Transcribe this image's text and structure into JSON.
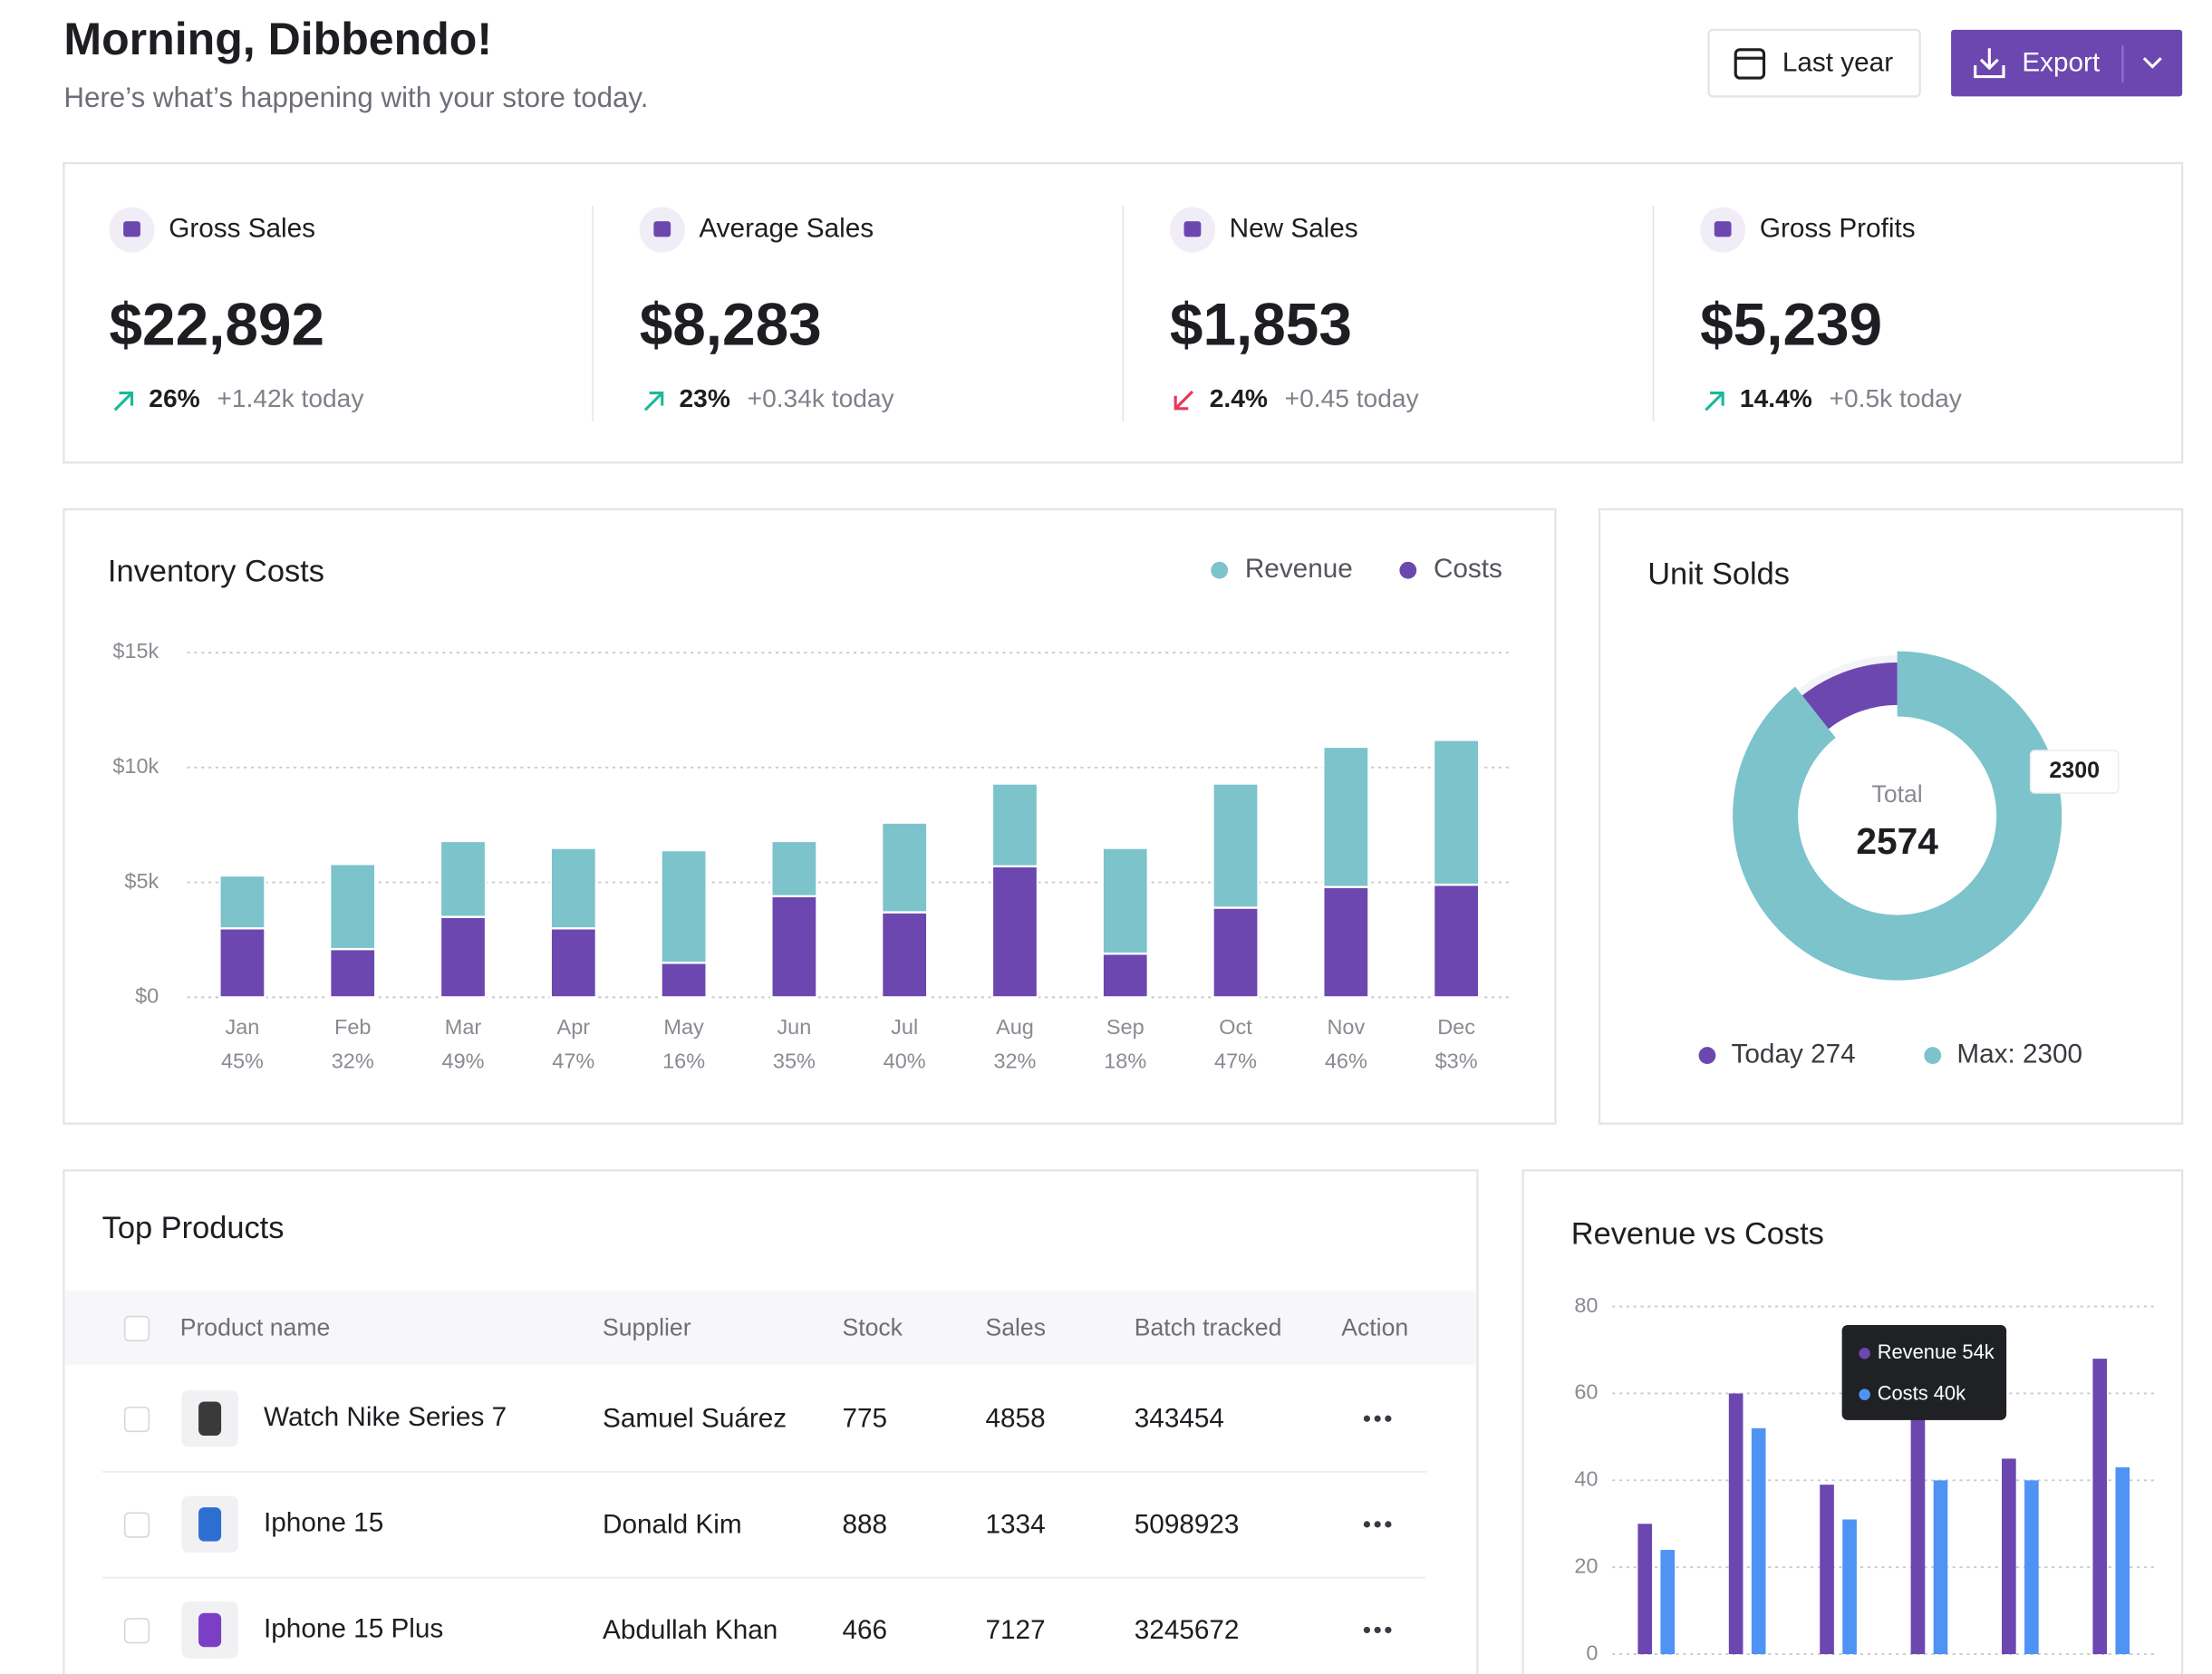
{
  "header": {
    "title": "Morning, Dibbendo!",
    "subtitle": "Here’s what’s happening with your store today."
  },
  "buttons": {
    "period": "Last year",
    "export": "Export"
  },
  "stats": [
    {
      "label": "Gross Sales",
      "value": "$22,892",
      "change": "26%",
      "direction": "up",
      "today": "+1.42k today"
    },
    {
      "label": "Average Sales",
      "value": "$8,283",
      "change": "23%",
      "direction": "up",
      "today": "+0.34k today"
    },
    {
      "label": "New Sales",
      "value": "$1,853",
      "change": "2.4%",
      "direction": "down",
      "today": "+0.45 today"
    },
    {
      "label": "Gross Profits",
      "value": "$5,239",
      "change": "14.4%",
      "direction": "up",
      "today": "+0.5k today"
    }
  ],
  "table": {
    "title": "Top Products",
    "columns": [
      "Product name",
      "Supplier",
      "Stock",
      "Sales",
      "Batch tracked",
      "Action"
    ],
    "rows": [
      [
        "Watch Nike Series 7",
        "Samuel Suárez",
        "775",
        "4858",
        "343454"
      ],
      [
        "Iphone 15",
        "Donald Kim",
        "888",
        "1334",
        "5098923"
      ],
      [
        "Iphone 15 Plus",
        "Abdullah Khan",
        "466",
        "7127",
        "3245672"
      ]
    ]
  },
  "chart_data": [
    {
      "type": "bar",
      "stacked": true,
      "title": "Inventory Costs",
      "categories": [
        "Jan",
        "Feb",
        "Mar",
        "Apr",
        "May",
        "Jun",
        "Jul",
        "Aug",
        "Sep",
        "Oct",
        "Nov",
        "Dec"
      ],
      "category_notes": [
        "45%",
        "32%",
        "49%",
        "47%",
        "16%",
        "35%",
        "40%",
        "32%",
        "18%",
        "47%",
        "46%",
        "$3%"
      ],
      "series": [
        {
          "name": "Revenue",
          "color": "#7cc3cc",
          "values": [
            2300,
            3700,
            3300,
            3500,
            4900,
            2400,
            3900,
            3600,
            4600,
            5400,
            6100,
            6300
          ]
        },
        {
          "name": "Costs",
          "color": "#6c47b0",
          "values": [
            3000,
            2100,
            3500,
            3000,
            1500,
            4400,
            3700,
            5700,
            1900,
            3900,
            4800,
            4900
          ]
        }
      ],
      "ylim": [
        0,
        15000
      ],
      "yticks": [
        {
          "value": 0,
          "label": "$0"
        },
        {
          "value": 5000,
          "label": "$5k"
        },
        {
          "value": 10000,
          "label": "$10k"
        },
        {
          "value": 15000,
          "label": "$15k"
        }
      ],
      "grid": true,
      "legend": "top-right"
    },
    {
      "type": "donut",
      "title": "Unit Solds",
      "center_label": "Total",
      "total": 2574,
      "labels": [
        "Today 274",
        "Max: 2300"
      ],
      "values": [
        274,
        2300
      ],
      "colors": [
        "#6c47b0",
        "#7cc3cc"
      ]
    },
    {
      "type": "bar",
      "title": "Revenue vs Costs",
      "categories": [
        null,
        null,
        null,
        null,
        null,
        null
      ],
      "series": [
        {
          "color": "#6c47b0",
          "values": [
            30,
            60,
            39,
            54,
            45,
            68
          ]
        },
        {
          "color": "#4f94f4",
          "values": [
            24,
            52,
            31,
            40,
            40,
            43
          ]
        }
      ],
      "ylim": [
        0,
        80
      ],
      "yticks": [
        0,
        20,
        40,
        60,
        80
      ],
      "grid": true,
      "tooltip": [
        "Revenue 54k",
        "Costs 40k"
      ]
    }
  ]
}
